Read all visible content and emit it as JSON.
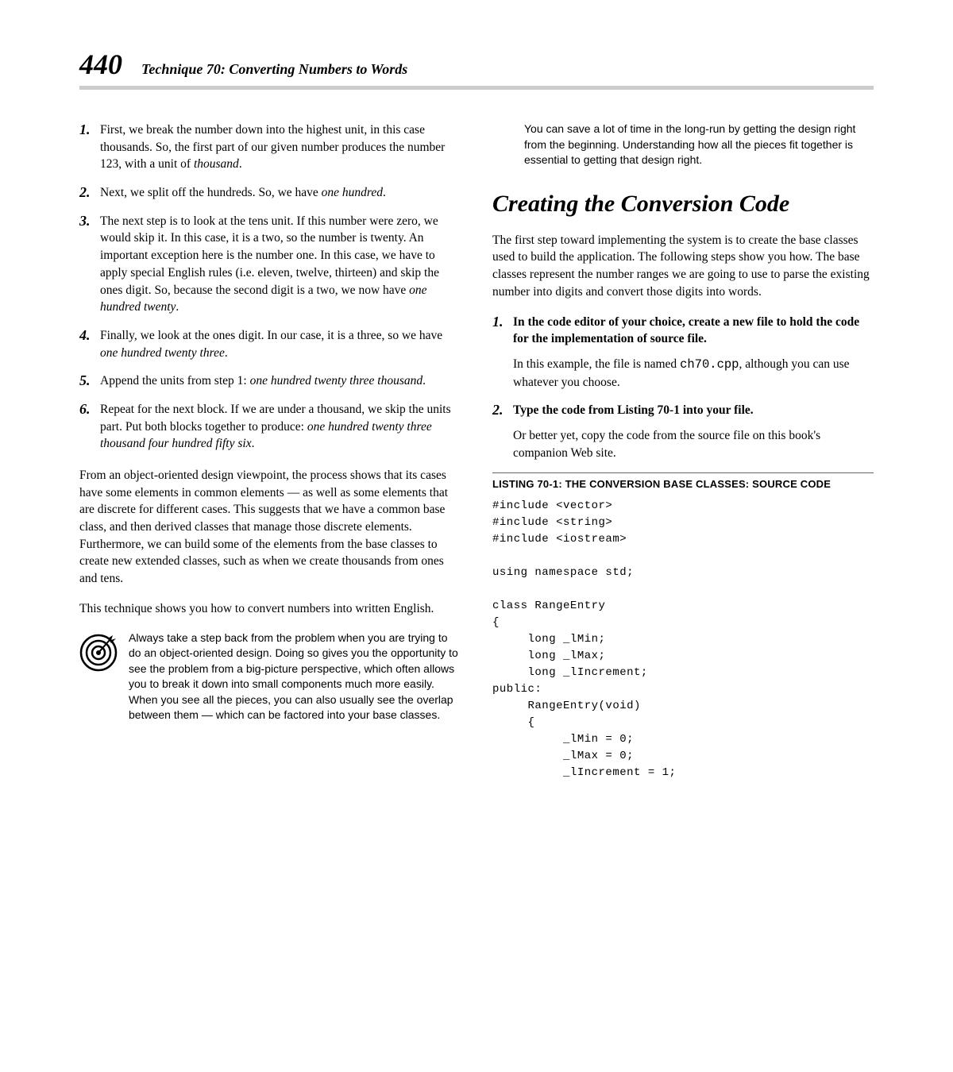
{
  "header": {
    "page_number": "440",
    "title": "Technique 70: Converting Numbers to Words"
  },
  "left": {
    "steps": [
      {
        "n": "1.",
        "html": "First, we break the number down into the highest unit, in this case thousands. So, the first part of our given number produces the number 123, with a unit of <span class=\"ital\">thousand</span>."
      },
      {
        "n": "2.",
        "html": "Next, we split off the hundreds. So, we have <span class=\"ital\">one hundred</span>."
      },
      {
        "n": "3.",
        "html": "The next step is to look at the tens unit. If this number were zero, we would skip it. In this case, it is a two, so the number is twenty. An important exception here is the number one. In this case, we have to apply special English rules (i.e. eleven, twelve, thirteen) and skip the ones digit. So, because the second digit is a two, we now have <span class=\"ital\">one hundred twenty</span>."
      },
      {
        "n": "4.",
        "html": "Finally, we look at the ones digit. In our case, it is a three, so we have <span class=\"ital\">one hundred twenty three</span>."
      },
      {
        "n": "5.",
        "html": "Append the units from step 1: <span class=\"ital\">one hundred twenty three thousand</span>."
      },
      {
        "n": "6.",
        "html": "Repeat for the next block. If we are under a thousand, we skip the units part. Put both blocks together to produce: <span class=\"ital\">one hundred twenty three thousand four hundred fifty six</span>."
      }
    ],
    "para1": "From an object-oriented design viewpoint, the process shows that its cases have some elements in common elements — as well as some elements that are discrete for different cases. This suggests that we have a common base class, and then derived classes that manage those discrete elements. Furthermore, we can build some of the elements from the base classes to create new extended classes, such as when we create thousands from ones and tens.",
    "para2": "This technique shows you how to convert numbers into written English.",
    "tip": "Always take a step back from the problem when you are trying to do an object-oriented design. Doing so gives you the opportunity to see the problem from a big-picture perspective, which often allows you to break it down into small components much more easily. When you see all the pieces, you can also usually see the overlap between them — which can be factored into your base classes."
  },
  "right": {
    "tip_continued": "You can save a lot of time in the long-run by getting the design right from the beginning. Understanding how all the pieces fit together is essential to getting that design right.",
    "section_heading": "Creating the Conversion Code",
    "intro": "The first step toward implementing the system is to create the base classes used to build the application. The following steps show you how. The base classes represent the number ranges we are going to use to parse the existing number into digits and convert those digits into words.",
    "steps": [
      {
        "n": "1.",
        "bold": "In the code editor of your choice, create a new file to hold the code for the implementation of source file.",
        "note_html": "In this example, the file is named <span class=\"mono\">ch70.cpp</span>, although you can use whatever you choose."
      },
      {
        "n": "2.",
        "bold": "Type the code from Listing 70-1 into your file.",
        "note_html": "Or better yet, copy the code from the source file on this book's companion Web site."
      }
    ],
    "listing_caption_prefix": "Listing 70-1",
    "listing_caption_rest": ": The Conversion Base Classes: Source Code",
    "code": "#include <vector>\n#include <string>\n#include <iostream>\n\nusing namespace std;\n\nclass RangeEntry\n{\n     long _lMin;\n     long _lMax;\n     long _lIncrement;\npublic:\n     RangeEntry(void)\n     {\n          _lMin = 0;\n          _lMax = 0;\n          _lIncrement = 1;"
  },
  "colors": {
    "header_rule": "#cccccc",
    "text": "#000000",
    "bg": "#ffffff"
  },
  "typography": {
    "page_number_fontsize": 36,
    "header_title_fontsize": 18,
    "body_fontsize": 15.5,
    "step_num_fontsize": 18,
    "section_heading_fontsize": 30,
    "listing_caption_fontsize": 13,
    "code_fontsize": 14,
    "tip_fontsize": 14
  }
}
